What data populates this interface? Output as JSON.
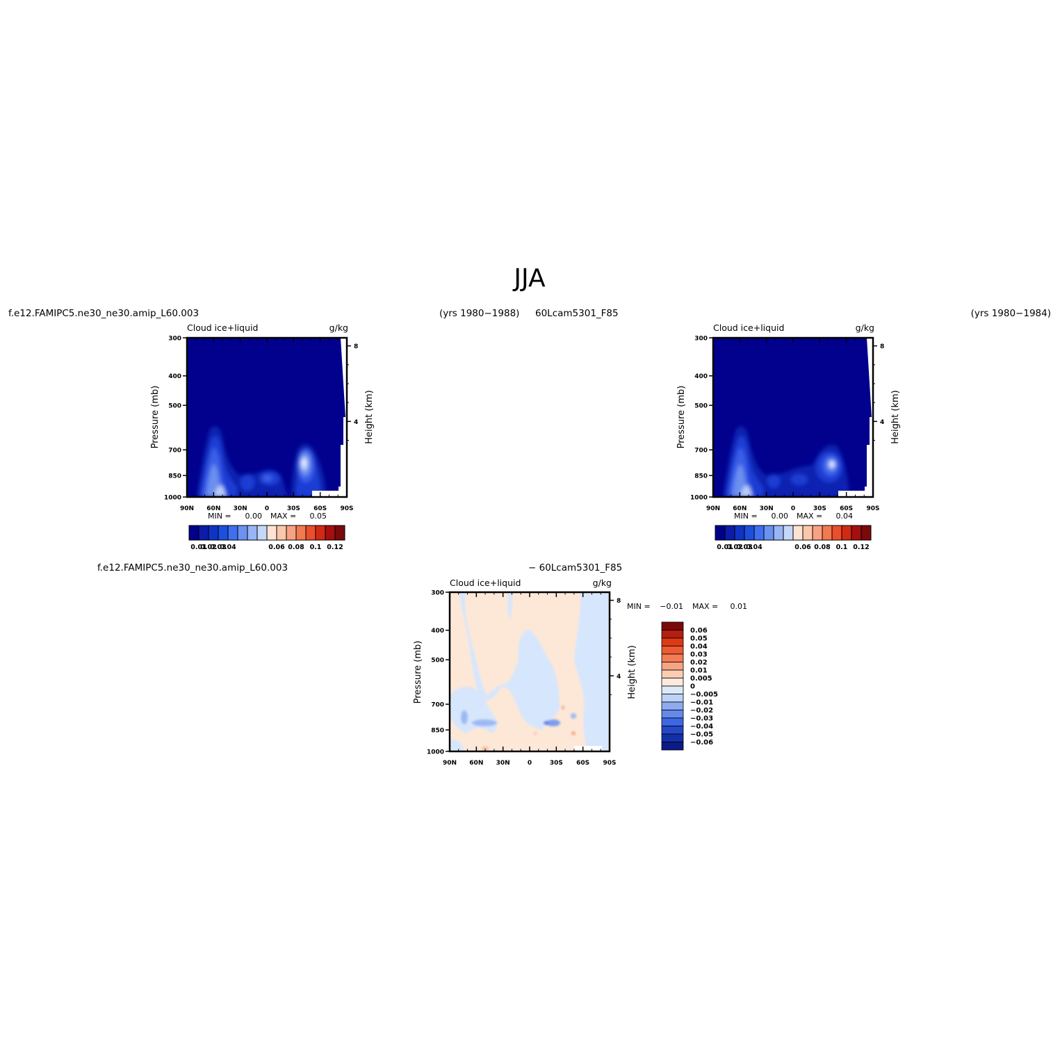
{
  "page_title": "JJA",
  "header": {
    "case1_name": "f.e12.FAMIPC5.ne30_ne30.amip_L60.003",
    "case1_years": "(yrs 1980−1988)",
    "case2_name": "60Lcam5301_F85",
    "case2_years": "(yrs 1980−1984)",
    "diff_case1": "f.e12.FAMIPC5.ne30_ne30.amip_L60.003",
    "diff_case2": "− 60Lcam5301_F85"
  },
  "chart_data": [
    {
      "type": "contour",
      "panel": "case1",
      "title": "Cloud  ice+liquid",
      "units": "g/kg",
      "ylabel": "Pressure  (mb)",
      "ylabel_right": "Height  (km)",
      "ylim": [
        1000,
        300
      ],
      "y_scale": "log",
      "x_ticks": [
        "90N",
        "60N",
        "30N",
        "0",
        "30S",
        "60S",
        "90S"
      ],
      "y_ticks": [
        "300",
        "400",
        "500",
        "700",
        "850",
        "1000"
      ],
      "right_ticks": [
        "8",
        "4"
      ],
      "stats": {
        "min_label": "MIN =",
        "min": "0.00",
        "max_label": "MAX =",
        "max": "0.05"
      },
      "features": [
        {
          "lat": 55,
          "p": 880,
          "max": 0.04
        },
        {
          "lat": 50,
          "p": 960,
          "max": 0.05
        },
        {
          "lat": -42,
          "p": 850,
          "max": 0.045
        },
        {
          "lat": 5,
          "p": 900,
          "max": 0.02
        },
        {
          "lat": 20,
          "p": 920,
          "max": 0.02
        }
      ]
    },
    {
      "type": "contour",
      "panel": "case2",
      "title": "Cloud  ice+liquid",
      "units": "g/kg",
      "ylabel": "Pressure  (mb)",
      "ylabel_right": "Height  (km)",
      "ylim": [
        1000,
        300
      ],
      "y_scale": "log",
      "x_ticks": [
        "90N",
        "60N",
        "30N",
        "0",
        "30S",
        "60S",
        "90S"
      ],
      "y_ticks": [
        "300",
        "400",
        "500",
        "700",
        "850",
        "1000"
      ],
      "right_ticks": [
        "8",
        "4"
      ],
      "stats": {
        "min_label": "MIN =",
        "min": "0.00",
        "max_label": "MAX =",
        "max": "0.04"
      },
      "features": [
        {
          "lat": 55,
          "p": 880,
          "max": 0.035
        },
        {
          "lat": 50,
          "p": 960,
          "max": 0.04
        },
        {
          "lat": -42,
          "p": 850,
          "max": 0.04
        },
        {
          "lat": 5,
          "p": 910,
          "max": 0.015
        },
        {
          "lat": 20,
          "p": 930,
          "max": 0.015
        }
      ]
    },
    {
      "type": "contour",
      "panel": "difference",
      "title": "Cloud  ice+liquid",
      "units": "g/kg",
      "ylabel": "Pressure  (mb)",
      "ylabel_right": "Height  (km)",
      "ylim": [
        1000,
        300
      ],
      "y_scale": "log",
      "x_ticks": [
        "90N",
        "60N",
        "30N",
        "0",
        "30S",
        "60S",
        "90S"
      ],
      "y_ticks": [
        "300",
        "400",
        "500",
        "700",
        "850",
        "1000"
      ],
      "right_ticks": [
        "8",
        "4"
      ],
      "stats": {
        "min_label": "MIN =",
        "min": "−0.01",
        "max_label": "MAX =",
        "max": "0.01"
      }
    }
  ],
  "colorbar_main": {
    "colors": [
      "#00008b",
      "#0a1ca8",
      "#0f33c4",
      "#1e4fdc",
      "#3f6fee",
      "#6b92f2",
      "#98b5f5",
      "#c4d9fa",
      "#fde4d2",
      "#fbc7aa",
      "#f7a283",
      "#f3794e",
      "#ea4e2a",
      "#d02a14",
      "#a50f0f",
      "#7a0a0a"
    ],
    "labels": [
      "0.01",
      "0.02",
      "0.03",
      "0.04",
      "0.06",
      "0.08",
      "0.1",
      "0.12"
    ]
  },
  "colorbar_diff": {
    "colors": [
      "#7a0a0a",
      "#b51e10",
      "#dc3a16",
      "#ee5a32",
      "#f47c56",
      "#f7a483",
      "#fbcdb3",
      "#fdeadc",
      "#dde9fb",
      "#bdd2f7",
      "#8eabf0",
      "#6389ec",
      "#3f67e4",
      "#2447c8",
      "#1430a8",
      "#0b1b86"
    ],
    "labels": [
      "0.06",
      "0.05",
      "0.04",
      "0.03",
      "0.02",
      "0.01",
      "0.005",
      "0",
      "−0.005",
      "−0.01",
      "−0.02",
      "−0.03",
      "−0.04",
      "−0.05",
      "−0.06"
    ]
  }
}
